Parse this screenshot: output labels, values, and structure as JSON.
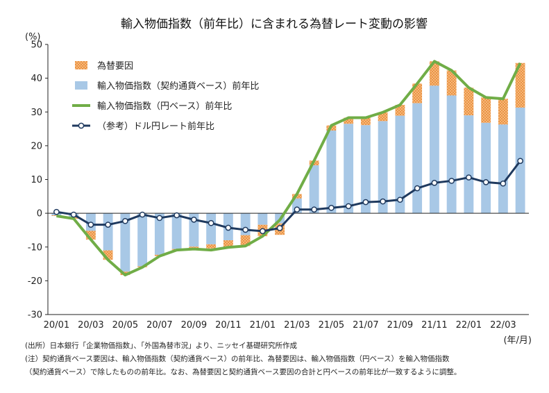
{
  "colors": {
    "fx": "#F4A35A",
    "fx_dot": "#E07A1F",
    "contract": "#A8C8E6",
    "yen": "#70AD47",
    "dollar": "#1F3A5F",
    "axis": "#222222"
  },
  "chart_data": {
    "type": "bar",
    "title": "輸入物価指数（前年比）に含まれる為替レート変動の影響",
    "y_unit": "(%)",
    "x_unit": "(年/月)",
    "ylim": [
      -30,
      50
    ],
    "yticks": [
      50,
      40,
      30,
      20,
      10,
      0,
      -10,
      -20,
      -30
    ],
    "grid": false,
    "legend_position": "top-left",
    "x": [
      "20/01",
      "20/02",
      "20/03",
      "20/04",
      "20/05",
      "20/06",
      "20/07",
      "20/08",
      "20/09",
      "20/10",
      "20/11",
      "20/12",
      "21/01",
      "21/02",
      "21/03",
      "21/04",
      "21/05",
      "21/06",
      "21/07",
      "21/08",
      "21/09",
      "21/10",
      "21/11",
      "21/12",
      "22/01",
      "22/02",
      "22/03",
      "22/04"
    ],
    "x_tick_labels": [
      "20/01",
      "20/03",
      "20/05",
      "20/07",
      "20/09",
      "20/11",
      "21/01",
      "21/03",
      "21/05",
      "21/07",
      "21/09",
      "21/11",
      "22/01",
      "22/03"
    ],
    "series": [
      {
        "name": "為替要因",
        "kind": "bar_stack_top",
        "values": [
          -0.2,
          -0.4,
          -2.6,
          -2.8,
          -1.0,
          -0.3,
          -0.4,
          -0.3,
          -0.7,
          -1.2,
          -2.1,
          -3.2,
          -3.4,
          -3.4,
          1.3,
          1.4,
          1.5,
          1.8,
          2.2,
          2.6,
          3.2,
          5.8,
          7.2,
          7.4,
          8.2,
          7.5,
          7.6,
          13.2
        ]
      },
      {
        "name": "輸入物価指数（契約通貨ベース）前年比",
        "kind": "bar",
        "values": [
          -0.6,
          -1.2,
          -5.2,
          -11.0,
          -17.3,
          -15.7,
          -12.3,
          -10.6,
          -9.9,
          -9.2,
          -8.0,
          -6.5,
          -3.4,
          -3.0,
          4.4,
          14.2,
          24.5,
          26.5,
          26.1,
          27.3,
          28.9,
          32.6,
          37.8,
          34.9,
          29.0,
          26.8,
          26.3,
          31.3
        ]
      },
      {
        "name": "輸入物価指数（円ベース）前年比",
        "kind": "line",
        "values": [
          -0.8,
          -1.6,
          -7.8,
          -13.8,
          -18.3,
          -16.0,
          -12.7,
          -10.9,
          -10.6,
          -10.9,
          -10.1,
          -9.7,
          -6.8,
          -2.0,
          5.7,
          15.6,
          26.0,
          28.3,
          28.3,
          29.9,
          32.1,
          38.4,
          45.0,
          42.3,
          37.2,
          34.3,
          33.9,
          44.5
        ]
      },
      {
        "name": "（参考）ドル円レート前年比",
        "kind": "line_marker",
        "values": [
          0.4,
          -0.4,
          -3.4,
          -3.4,
          -2.3,
          -0.4,
          -1.4,
          -0.6,
          -1.9,
          -2.9,
          -4.3,
          -4.9,
          -5.3,
          -4.4,
          1.1,
          1.1,
          1.6,
          2.1,
          3.3,
          3.5,
          4.0,
          7.4,
          9.0,
          9.6,
          10.6,
          9.2,
          8.8,
          15.5
        ]
      }
    ]
  },
  "notes": {
    "line1": "(出所）日本銀行「企業物価指数」、「外国為替市況」より、ニッセイ基礎研究所作成",
    "line2": "(注）契約通貨ベース要因は、輸入物価指数（契約通貨ベース）の前年比、為替要因は、輸入物価指数（円ベース）を輸入物価指数",
    "line3": "（契約通貨ベース）で除したものの前年比。なお、為替要因と契約通貨ベース要因の合計と円ベースの前年比が一致するように調整。"
  }
}
